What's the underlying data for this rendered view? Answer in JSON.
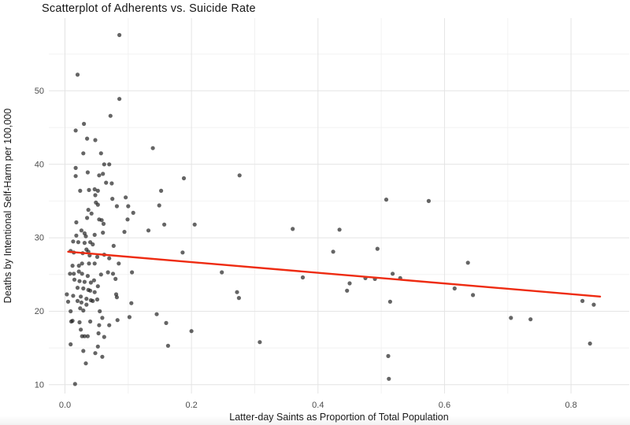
{
  "page": {
    "background": "#ffffff"
  },
  "chart_data": {
    "type": "scatter",
    "title": "Scatterplot of Adherents vs. Suicide Rate",
    "xlabel": "Latter-day Saints as Proportion of Total Population",
    "ylabel": "Deaths by Intentional Self-Harm per 100,000",
    "xlim": [
      -0.0255,
      0.892
    ],
    "ylim": [
      8.8,
      59.9
    ],
    "x_ticks": [
      0.0,
      0.2,
      0.4,
      0.6,
      0.8
    ],
    "x_tick_labels": [
      "0.0",
      "0.2",
      "0.4",
      "0.6",
      "0.8"
    ],
    "y_ticks": [
      10,
      20,
      30,
      40,
      50
    ],
    "y_tick_labels": [
      "10",
      "20",
      "30",
      "40",
      "50"
    ],
    "x_minor_ticks": [
      0.1,
      0.3,
      0.5,
      0.7
    ],
    "y_minor_ticks": [
      15,
      25,
      35,
      45,
      55
    ],
    "grid": "on",
    "legend": "none",
    "trend_line": {
      "type": "linear-fit",
      "x1": 0.005,
      "y1": 28.1,
      "x2": 0.846,
      "y2": 22.0
    },
    "colors": {
      "point_fill": "#1c1c1c",
      "point_opacity": 0.68,
      "trend": "#ee2b11",
      "grid_major": "#e4e4e4",
      "grid_minor": "#f2f2f2",
      "tick_text": "#4d4d4d",
      "axis_title_text": "#1a1a1a",
      "title_text": "#161616"
    },
    "points": [
      [
        0.086,
        57.6
      ],
      [
        0.02,
        52.2
      ],
      [
        0.086,
        48.9
      ],
      [
        0.072,
        46.6
      ],
      [
        0.03,
        45.5
      ],
      [
        0.017,
        44.6
      ],
      [
        0.035,
        43.5
      ],
      [
        0.048,
        43.3
      ],
      [
        0.139,
        42.2
      ],
      [
        0.029,
        41.5
      ],
      [
        0.057,
        41.5
      ],
      [
        0.062,
        40.0
      ],
      [
        0.07,
        40.0
      ],
      [
        0.017,
        39.5
      ],
      [
        0.036,
        38.9
      ],
      [
        0.06,
        38.7
      ],
      [
        0.054,
        38.5
      ],
      [
        0.017,
        38.4
      ],
      [
        0.188,
        38.1
      ],
      [
        0.276,
        38.5
      ],
      [
        0.065,
        37.5
      ],
      [
        0.074,
        37.4
      ],
      [
        0.024,
        36.4
      ],
      [
        0.038,
        36.5
      ],
      [
        0.047,
        36.6
      ],
      [
        0.052,
        36.4
      ],
      [
        0.152,
        36.4
      ],
      [
        0.048,
        35.8
      ],
      [
        0.075,
        35.3
      ],
      [
        0.096,
        35.5
      ],
      [
        0.049,
        34.8
      ],
      [
        0.052,
        34.5
      ],
      [
        0.082,
        34.3
      ],
      [
        0.1,
        34.3
      ],
      [
        0.149,
        34.4
      ],
      [
        0.508,
        35.2
      ],
      [
        0.575,
        35.0
      ],
      [
        0.037,
        33.8
      ],
      [
        0.042,
        33.3
      ],
      [
        0.108,
        33.4
      ],
      [
        0.035,
        32.7
      ],
      [
        0.099,
        32.5
      ],
      [
        0.018,
        32.1
      ],
      [
        0.054,
        32.5
      ],
      [
        0.058,
        32.4
      ],
      [
        0.061,
        31.9
      ],
      [
        0.157,
        31.8
      ],
      [
        0.205,
        31.8
      ],
      [
        0.026,
        31.0
      ],
      [
        0.031,
        30.6
      ],
      [
        0.06,
        30.7
      ],
      [
        0.094,
        30.8
      ],
      [
        0.132,
        31.0
      ],
      [
        0.018,
        30.3
      ],
      [
        0.033,
        30.2
      ],
      [
        0.047,
        30.4
      ],
      [
        0.36,
        31.2
      ],
      [
        0.434,
        31.1
      ],
      [
        0.013,
        29.5
      ],
      [
        0.021,
        29.4
      ],
      [
        0.031,
        29.3
      ],
      [
        0.04,
        29.4
      ],
      [
        0.044,
        29.1
      ],
      [
        0.077,
        28.9
      ],
      [
        0.009,
        28.2
      ],
      [
        0.014,
        28.0
      ],
      [
        0.028,
        27.9
      ],
      [
        0.034,
        28.4
      ],
      [
        0.037,
        28.1
      ],
      [
        0.186,
        28.0
      ],
      [
        0.424,
        28.1
      ],
      [
        0.494,
        28.5
      ],
      [
        0.039,
        27.6
      ],
      [
        0.051,
        27.4
      ],
      [
        0.062,
        27.7
      ],
      [
        0.07,
        27.2
      ],
      [
        0.085,
        26.5
      ],
      [
        0.012,
        26.2
      ],
      [
        0.022,
        26.2
      ],
      [
        0.027,
        26.5
      ],
      [
        0.038,
        26.5
      ],
      [
        0.047,
        26.5
      ],
      [
        0.637,
        26.6
      ],
      [
        0.008,
        25.1
      ],
      [
        0.014,
        25.1
      ],
      [
        0.022,
        25.4
      ],
      [
        0.027,
        25.1
      ],
      [
        0.036,
        24.8
      ],
      [
        0.057,
        25.0
      ],
      [
        0.068,
        25.3
      ],
      [
        0.076,
        25.1
      ],
      [
        0.106,
        25.3
      ],
      [
        0.248,
        25.3
      ],
      [
        0.376,
        24.6
      ],
      [
        0.475,
        24.5
      ],
      [
        0.49,
        24.4
      ],
      [
        0.518,
        25.1
      ],
      [
        0.53,
        24.5
      ],
      [
        0.015,
        24.3
      ],
      [
        0.023,
        24.1
      ],
      [
        0.031,
        24.0
      ],
      [
        0.041,
        23.9
      ],
      [
        0.046,
        24.2
      ],
      [
        0.08,
        24.4
      ],
      [
        0.02,
        23.2
      ],
      [
        0.029,
        23.1
      ],
      [
        0.037,
        22.9
      ],
      [
        0.04,
        22.8
      ],
      [
        0.047,
        22.6
      ],
      [
        0.052,
        23.4
      ],
      [
        0.272,
        22.6
      ],
      [
        0.275,
        21.8
      ],
      [
        0.45,
        23.8
      ],
      [
        0.446,
        22.8
      ],
      [
        0.616,
        23.1
      ],
      [
        0.645,
        22.2
      ],
      [
        0.003,
        22.3
      ],
      [
        0.013,
        22.1
      ],
      [
        0.025,
        22.0
      ],
      [
        0.034,
        21.7
      ],
      [
        0.041,
        21.5
      ],
      [
        0.051,
        21.6
      ],
      [
        0.081,
        22.3
      ],
      [
        0.082,
        21.9
      ],
      [
        0.105,
        21.1
      ],
      [
        0.514,
        21.3
      ],
      [
        0.818,
        21.4
      ],
      [
        0.836,
        20.9
      ],
      [
        0.005,
        21.3
      ],
      [
        0.02,
        21.4
      ],
      [
        0.026,
        21.2
      ],
      [
        0.034,
        20.9
      ],
      [
        0.044,
        21.4
      ],
      [
        0.009,
        20.0
      ],
      [
        0.024,
        20.4
      ],
      [
        0.029,
        20.1
      ],
      [
        0.055,
        20.0
      ],
      [
        0.145,
        19.6
      ],
      [
        0.01,
        18.6
      ],
      [
        0.012,
        18.7
      ],
      [
        0.023,
        18.5
      ],
      [
        0.04,
        18.6
      ],
      [
        0.059,
        19.1
      ],
      [
        0.083,
        18.8
      ],
      [
        0.102,
        19.2
      ],
      [
        0.16,
        18.4
      ],
      [
        0.705,
        19.1
      ],
      [
        0.736,
        18.9
      ],
      [
        0.025,
        17.5
      ],
      [
        0.054,
        18.1
      ],
      [
        0.07,
        18.1
      ],
      [
        0.2,
        17.3
      ],
      [
        0.027,
        16.6
      ],
      [
        0.031,
        16.6
      ],
      [
        0.036,
        16.6
      ],
      [
        0.053,
        17.0
      ],
      [
        0.062,
        16.5
      ],
      [
        0.009,
        15.5
      ],
      [
        0.052,
        15.2
      ],
      [
        0.163,
        15.3
      ],
      [
        0.308,
        15.8
      ],
      [
        0.83,
        15.6
      ],
      [
        0.029,
        14.6
      ],
      [
        0.048,
        14.3
      ],
      [
        0.059,
        13.8
      ],
      [
        0.511,
        13.9
      ],
      [
        0.033,
        12.9
      ],
      [
        0.512,
        10.8
      ],
      [
        0.016,
        10.1
      ]
    ]
  }
}
